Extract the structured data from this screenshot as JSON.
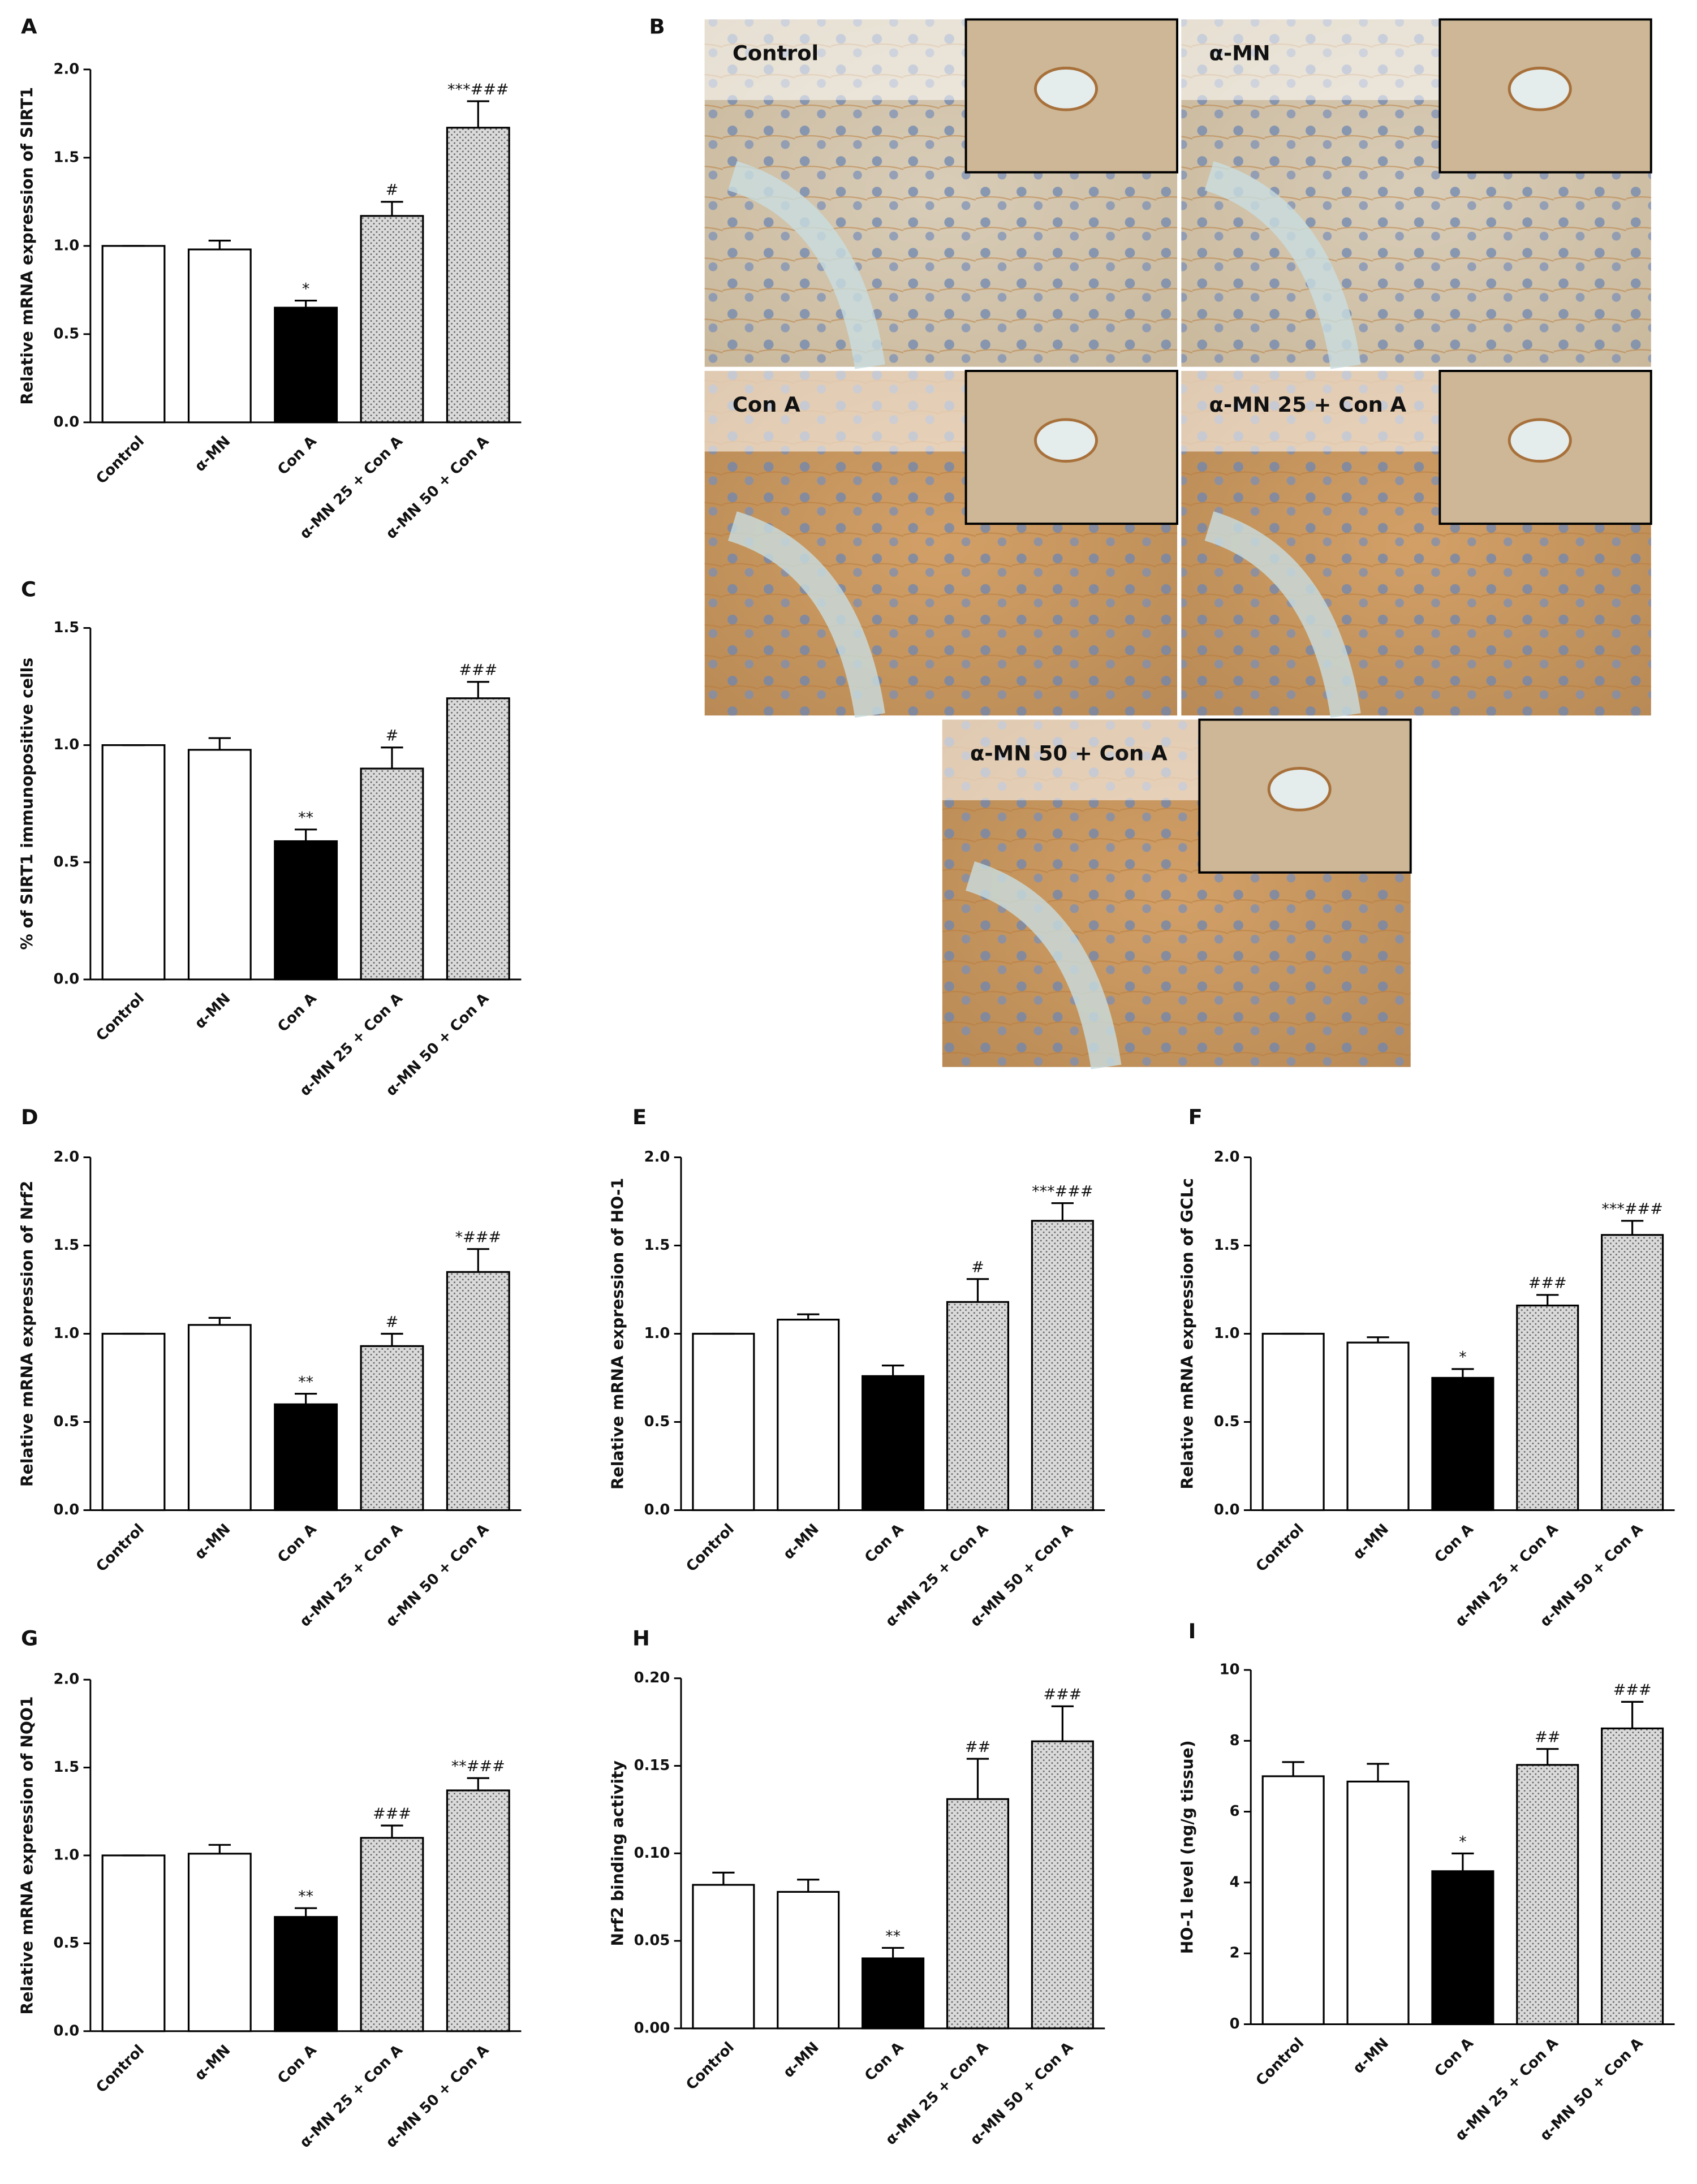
{
  "chart_data": [
    {
      "type": "bar",
      "panel": "A",
      "ylabel": "Relative mRNA expression of SIRT1",
      "categories": [
        "Control",
        "α-MN",
        "Con A",
        "α-MN 25 + Con A",
        "α-MN 50 + Con A"
      ],
      "values": [
        1.0,
        0.98,
        0.65,
        1.17,
        1.67
      ],
      "errors": [
        0,
        0.05,
        0.04,
        0.08,
        0.15
      ],
      "annotations": [
        null,
        null,
        "*",
        "#",
        "***###"
      ],
      "colors": [
        "#ffffff",
        "#ffffff",
        "#000000",
        "#d4d4d4",
        "#d4d4d4"
      ],
      "patterns": [
        null,
        null,
        null,
        "dots",
        "dots"
      ],
      "ylim": [
        0,
        2
      ],
      "yticks": [
        {
          "value": 0,
          "label": "0.0"
        },
        0.5,
        {
          "value": 1,
          "label": "1.0"
        },
        1.5,
        {
          "value": 2,
          "label": "2.0"
        }
      ]
    },
    {
      "type": "bar",
      "panel": "C",
      "ylabel": "% of SIRT1 immunopositive cells",
      "categories": [
        "Control",
        "α-MN",
        "Con A",
        "α-MN 25 + Con A",
        "α-MN 50 + Con A"
      ],
      "values": [
        1.0,
        0.98,
        0.59,
        0.9,
        1.2
      ],
      "errors": [
        0,
        0.05,
        0.05,
        0.09,
        0.07
      ],
      "annotations": [
        null,
        null,
        "**",
        "#",
        "###"
      ],
      "colors": [
        "#ffffff",
        "#ffffff",
        "#000000",
        "#d4d4d4",
        "#d4d4d4"
      ],
      "patterns": [
        null,
        null,
        null,
        "dots",
        "dots"
      ],
      "ylim": [
        0,
        1.5
      ],
      "yticks": [
        {
          "value": 0,
          "label": "0.0"
        },
        0.5,
        {
          "value": 1,
          "label": "1.0"
        },
        1.5
      ]
    },
    {
      "type": "bar",
      "panel": "D",
      "ylabel": "Relative mRNA expression of Nrf2",
      "categories": [
        "Control",
        "α-MN",
        "Con A",
        "α-MN 25 + Con A",
        "α-MN 50 + Con A"
      ],
      "values": [
        1.0,
        1.05,
        0.6,
        0.93,
        1.35
      ],
      "errors": [
        0,
        0.04,
        0.06,
        0.07,
        0.13
      ],
      "annotations": [
        null,
        null,
        "**",
        "#",
        "*###"
      ],
      "colors": [
        "#ffffff",
        "#ffffff",
        "#000000",
        "#d4d4d4",
        "#d4d4d4"
      ],
      "patterns": [
        null,
        null,
        null,
        "dots",
        "dots"
      ],
      "ylim": [
        0,
        2
      ],
      "yticks": [
        {
          "value": 0,
          "label": "0.0"
        },
        0.5,
        {
          "value": 1,
          "label": "1.0"
        },
        1.5,
        {
          "value": 2,
          "label": "2.0"
        }
      ]
    },
    {
      "type": "bar",
      "panel": "E",
      "ylabel": "Relative mRNA expression of HO-1",
      "categories": [
        "Control",
        "α-MN",
        "Con A",
        "α-MN 25 + Con A",
        "α-MN 50 + Con A"
      ],
      "values": [
        1.0,
        1.08,
        0.76,
        1.18,
        1.64
      ],
      "errors": [
        0,
        0.03,
        0.06,
        0.13,
        0.1
      ],
      "annotations": [
        null,
        null,
        null,
        "#",
        "***###"
      ],
      "colors": [
        "#ffffff",
        "#ffffff",
        "#000000",
        "#d4d4d4",
        "#d4d4d4"
      ],
      "patterns": [
        null,
        null,
        null,
        "dots",
        "dots"
      ],
      "ylim": [
        0,
        2
      ],
      "yticks": [
        {
          "value": 0,
          "label": "0.0"
        },
        0.5,
        {
          "value": 1,
          "label": "1.0"
        },
        1.5,
        {
          "value": 2,
          "label": "2.0"
        }
      ]
    },
    {
      "type": "bar",
      "panel": "F",
      "ylabel": "Relative mRNA expression of GCLc",
      "categories": [
        "Control",
        "α-MN",
        "Con A",
        "α-MN 25 + Con A",
        "α-MN 50 + Con A"
      ],
      "values": [
        1.0,
        0.95,
        0.75,
        1.16,
        1.56
      ],
      "errors": [
        0,
        0.03,
        0.05,
        0.06,
        0.08
      ],
      "annotations": [
        null,
        null,
        "*",
        "###",
        "***###"
      ],
      "colors": [
        "#ffffff",
        "#ffffff",
        "#000000",
        "#d4d4d4",
        "#d4d4d4"
      ],
      "patterns": [
        null,
        null,
        null,
        "dots",
        "dots"
      ],
      "ylim": [
        0,
        2
      ],
      "yticks": [
        {
          "value": 0,
          "label": "0.0"
        },
        0.5,
        {
          "value": 1,
          "label": "1.0"
        },
        1.5,
        {
          "value": 2,
          "label": "2.0"
        }
      ]
    },
    {
      "type": "bar",
      "panel": "G",
      "ylabel": "Relative mRNA expression of NQO1",
      "categories": [
        "Control",
        "α-MN",
        "Con A",
        "α-MN 25 + Con A",
        "α-MN 50 + Con A"
      ],
      "values": [
        1.0,
        1.01,
        0.65,
        1.1,
        1.37
      ],
      "errors": [
        0,
        0.05,
        0.05,
        0.07,
        0.07
      ],
      "annotations": [
        null,
        null,
        "**",
        "###",
        "**###"
      ],
      "colors": [
        "#ffffff",
        "#ffffff",
        "#000000",
        "#d4d4d4",
        "#d4d4d4"
      ],
      "patterns": [
        null,
        null,
        null,
        "dots",
        "dots"
      ],
      "ylim": [
        0,
        2
      ],
      "yticks": [
        {
          "value": 0,
          "label": "0.0"
        },
        0.5,
        {
          "value": 1,
          "label": "1.0"
        },
        1.5,
        {
          "value": 2,
          "label": "2.0"
        }
      ]
    },
    {
      "type": "bar",
      "panel": "H",
      "ylabel": "Nrf2 binding activity",
      "categories": [
        "Control",
        "α-MN",
        "Con A",
        "α-MN 25 + Con A",
        "α-MN 50 + Con A"
      ],
      "values": [
        0.082,
        0.078,
        0.04,
        0.131,
        0.164
      ],
      "errors": [
        0.007,
        0.007,
        0.006,
        0.023,
        0.02
      ],
      "annotations": [
        null,
        null,
        "**",
        "##",
        "###"
      ],
      "colors": [
        "#ffffff",
        "#ffffff",
        "#000000",
        "#d4d4d4",
        "#d4d4d4"
      ],
      "patterns": [
        null,
        null,
        null,
        "dots",
        "dots"
      ],
      "ylim": [
        0,
        0.2
      ],
      "yticks": [
        {
          "value": 0,
          "label": "0.00"
        },
        0.05,
        {
          "value": 0.1,
          "label": "0.10"
        },
        0.15,
        {
          "value": 0.2,
          "label": "0.20"
        }
      ]
    },
    {
      "type": "bar",
      "panel": "I",
      "ylabel": "HO-1 level (ng/g tissue)",
      "categories": [
        "Control",
        "α-MN",
        "Con A",
        "α-MN 25 + Con A",
        "α-MN 50 + Con A"
      ],
      "values": [
        7.0,
        6.85,
        4.32,
        7.32,
        8.35
      ],
      "errors": [
        0.4,
        0.5,
        0.5,
        0.45,
        0.75
      ],
      "annotations": [
        null,
        null,
        "*",
        "##",
        "###"
      ],
      "colors": [
        "#ffffff",
        "#ffffff",
        "#000000",
        "#d4d4d4",
        "#d4d4d4"
      ],
      "patterns": [
        null,
        null,
        null,
        "dots",
        "dots"
      ],
      "ylim": [
        0,
        10
      ],
      "yticks": [
        0,
        2,
        4,
        6,
        8,
        10
      ]
    }
  ],
  "micrographs": {
    "panel": "B",
    "labels": [
      "Control",
      "α-MN",
      "Con A",
      "α-MN 25 + Con A",
      "α-MN 50 + Con A"
    ]
  }
}
